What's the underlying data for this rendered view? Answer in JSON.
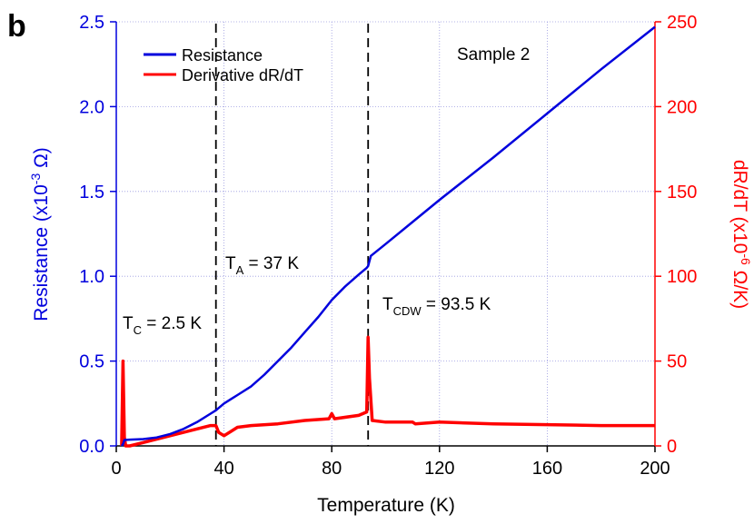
{
  "chart_data": {
    "type": "line",
    "panel_label": "b",
    "x_label": "Temperature (K)",
    "y_label": {
      "text": "Resistance (x10",
      "sup": "-3",
      "unit": " Ω)"
    },
    "y2_label": {
      "text": "dR/dT (x10",
      "sup": "-6",
      "unit": " Ω/K)"
    },
    "xlim": [
      0,
      200
    ],
    "xticks": [
      0,
      40,
      80,
      120,
      160,
      200
    ],
    "ylim": [
      0,
      2.5
    ],
    "yticks": [
      {
        "value": 0,
        "label": "0.0"
      },
      0.5,
      {
        "value": 1,
        "label": "1.0"
      },
      1.5,
      {
        "value": 2,
        "label": "2.0"
      },
      2.5
    ],
    "y2lim": [
      0,
      250
    ],
    "y2ticks": [
      0,
      50,
      100,
      150,
      200,
      250
    ],
    "grid": true,
    "legend": "upper-left",
    "reference_lines": [
      37,
      93.5
    ],
    "annotations": [
      {
        "symbol": "T",
        "sub": "C",
        "text": " = 2.5 K"
      },
      {
        "symbol": "T",
        "sub": "A",
        "text": " = 37 K"
      },
      {
        "symbol": "T",
        "sub": "CDW",
        "text": " = 93.5 K"
      },
      {
        "text": "Sample 2"
      }
    ],
    "series": [
      {
        "name": "Resistance",
        "color": "#0000dd",
        "axis": "y",
        "x": [
          2,
          2.5,
          3,
          5,
          10,
          15,
          20,
          25,
          30,
          35,
          37,
          40,
          45,
          50,
          55,
          60,
          65,
          70,
          75,
          80,
          85,
          90,
          93,
          93.5,
          94.5,
          100,
          110,
          120,
          140,
          160,
          180,
          200
        ],
        "values": [
          0.0,
          0.01,
          0.035,
          0.037,
          0.04,
          0.05,
          0.07,
          0.1,
          0.14,
          0.19,
          0.21,
          0.25,
          0.3,
          0.35,
          0.42,
          0.5,
          0.58,
          0.67,
          0.76,
          0.86,
          0.94,
          1.01,
          1.05,
          1.06,
          1.12,
          1.19,
          1.32,
          1.45,
          1.7,
          1.96,
          2.22,
          2.47
        ]
      },
      {
        "name": "Derivative dR/dT",
        "color": "#ff0000",
        "axis": "y2",
        "x": [
          2,
          2.5,
          3,
          3.5,
          5,
          10,
          15,
          20,
          25,
          30,
          35,
          37,
          38,
          40,
          45,
          50,
          60,
          70,
          79,
          80,
          81,
          90,
          93,
          93.5,
          94,
          95,
          100,
          110,
          111,
          120,
          140,
          160,
          180,
          200
        ],
        "values": [
          0,
          50,
          5,
          0,
          0,
          2,
          4,
          6,
          8,
          10,
          12,
          12,
          8,
          6,
          11,
          12,
          13,
          15,
          16,
          19,
          16,
          18,
          20,
          64,
          40,
          15,
          14,
          14,
          13,
          14,
          13,
          12.5,
          12,
          12
        ]
      }
    ]
  }
}
